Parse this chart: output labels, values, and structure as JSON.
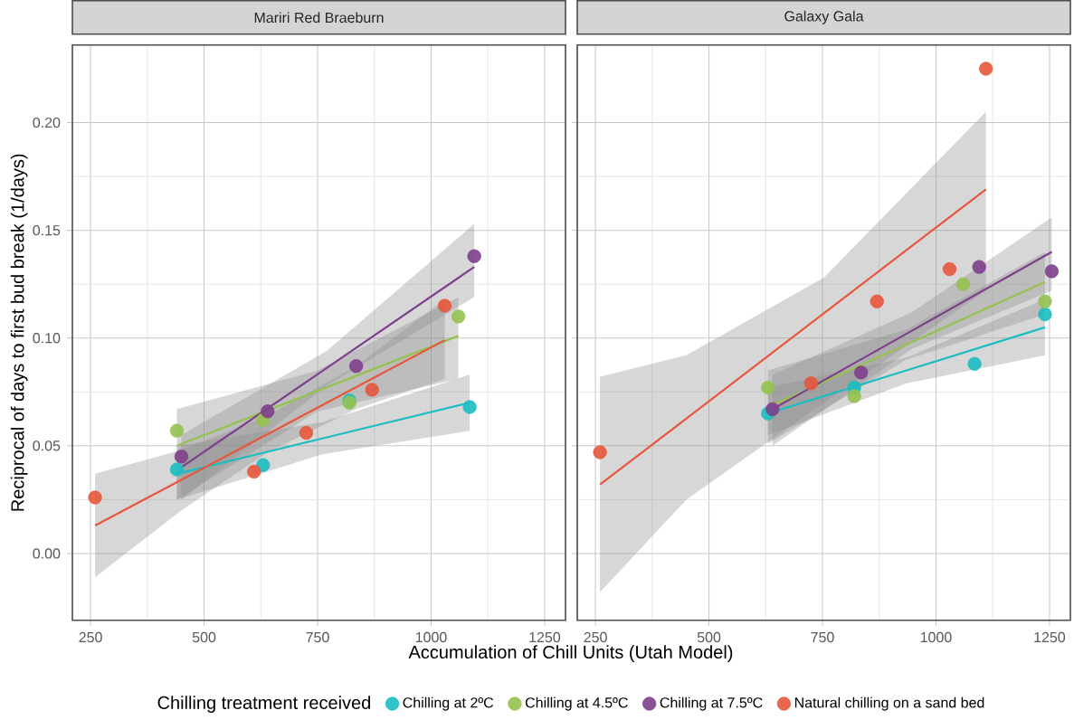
{
  "chart_data": [
    {
      "type": "scatter",
      "marker": "circle",
      "title": "Mariri Red Braeburn",
      "xlabel": "Accumulation of Chill Units (Utah Model)",
      "ylabel": "Reciprocal of days to first bud break (1/days)",
      "legend_title": "Chilling treatment received",
      "legend": "bottom",
      "grid": true,
      "xlim": [
        210,
        1296
      ],
      "ylim": [
        -0.031,
        0.236
      ],
      "xticks": [
        250,
        500,
        750,
        1000,
        1250
      ],
      "yticks": [
        {
          "value": 0,
          "label": "0.00"
        },
        {
          "value": 0.05,
          "label": "0.05"
        },
        {
          "value": 0.1,
          "label": "0.10"
        },
        {
          "value": 0.15,
          "label": "0.15"
        },
        {
          "value": 0.2,
          "label": "0.20"
        }
      ],
      "series": [
        {
          "name": "Chilling at 2ºC",
          "color": "#1cbdc2",
          "x": [
            440,
            630,
            820,
            1085
          ],
          "values": [
            0.039,
            0.041,
            0.071,
            0.068
          ]
        },
        {
          "name": "Chilling at 4.5ºC",
          "color": "#96c250",
          "x": [
            440,
            630,
            820,
            1060
          ],
          "values": [
            0.057,
            0.062,
            0.07,
            0.11
          ]
        },
        {
          "name": "Chilling at 7.5ºC",
          "color": "#7e3f8c",
          "x": [
            450,
            640,
            835,
            1095
          ],
          "values": [
            0.045,
            0.066,
            0.087,
            0.138
          ]
        },
        {
          "name": "Natural chilling on a sand bed",
          "color": "#e8573c",
          "x": [
            260,
            610,
            725,
            870,
            1030
          ],
          "values": [
            0.026,
            0.038,
            0.056,
            0.076,
            0.115
          ]
        },
        {
          "type": "line",
          "marker": "none",
          "color": "#1cbdc2",
          "x": [
            440,
            760,
            1085
          ],
          "values": [
            0.037,
            0.0534,
            0.07
          ],
          "lower": [
            0.025,
            0.046,
            0.057
          ],
          "upper": [
            0.05,
            0.061,
            0.083
          ]
        },
        {
          "type": "line",
          "marker": "none",
          "color": "#96c250",
          "x": [
            440,
            750,
            1060
          ],
          "values": [
            0.05,
            0.0755,
            0.101
          ],
          "lower": [
            0.025,
            0.066,
            0.081
          ],
          "upper": [
            0.067,
            0.085,
            0.119
          ]
        },
        {
          "type": "line",
          "marker": "none",
          "color": "#7e3f8c",
          "x": [
            450,
            770,
            1095
          ],
          "values": [
            0.04,
            0.0861,
            0.133
          ],
          "lower": [
            0.025,
            0.078,
            0.119
          ],
          "upper": [
            0.055,
            0.094,
            0.153
          ]
        },
        {
          "type": "line",
          "marker": "none",
          "color": "#e8573c",
          "x": [
            260,
            450,
            640,
            835,
            1030
          ],
          "values": [
            0.013,
            0.0342,
            0.0554,
            0.0772,
            0.099
          ],
          "lower": [
            -0.011,
            0.02,
            0.047,
            0.067,
            0.081
          ],
          "upper": [
            0.037,
            0.048,
            0.064,
            0.087,
            0.118
          ]
        }
      ]
    },
    {
      "type": "scatter",
      "marker": "circle",
      "title": "Galaxy Gala",
      "grid": true,
      "tick_labels": "x",
      "xlim": [
        210,
        1296
      ],
      "ylim": [
        -0.031,
        0.236
      ],
      "xticks": [
        250,
        500,
        750,
        1000,
        1250
      ],
      "yticks": [
        0,
        0.05,
        0.1,
        0.15,
        0.2
      ],
      "series": [
        {
          "color": "#1cbdc2",
          "x": [
            630,
            820,
            1085,
            1240
          ],
          "values": [
            0.065,
            0.077,
            0.088,
            0.111
          ]
        },
        {
          "color": "#96c250",
          "x": [
            630,
            820,
            1060,
            1240
          ],
          "values": [
            0.077,
            0.073,
            0.125,
            0.117
          ]
        },
        {
          "color": "#7e3f8c",
          "x": [
            640,
            835,
            1095,
            1255
          ],
          "values": [
            0.067,
            0.084,
            0.133,
            0.131
          ]
        },
        {
          "color": "#e8573c",
          "x": [
            260,
            725,
            870,
            1030,
            1110
          ],
          "values": [
            0.047,
            0.079,
            0.117,
            0.132,
            0.225
          ]
        },
        {
          "type": "line",
          "marker": "none",
          "color": "#1cbdc2",
          "x": [
            630,
            935,
            1240
          ],
          "values": [
            0.065,
            0.085,
            0.105
          ],
          "lower": [
            0.055,
            0.079,
            0.092
          ],
          "upper": [
            0.077,
            0.091,
            0.118
          ]
        },
        {
          "type": "line",
          "marker": "none",
          "color": "#96c250",
          "x": [
            630,
            935,
            1240
          ],
          "values": [
            0.068,
            0.097,
            0.126
          ],
          "lower": [
            0.051,
            0.09,
            0.111
          ],
          "upper": [
            0.085,
            0.104,
            0.14
          ]
        },
        {
          "type": "line",
          "marker": "none",
          "color": "#7e3f8c",
          "x": [
            640,
            947,
            1255
          ],
          "values": [
            0.067,
            0.1034,
            0.14
          ],
          "lower": [
            0.05,
            0.095,
            0.122
          ],
          "upper": [
            0.083,
            0.112,
            0.156
          ]
        },
        {
          "type": "line",
          "marker": "none",
          "color": "#e8573c",
          "x": [
            260,
            450,
            753,
            1110
          ],
          "values": [
            0.032,
            0.0626,
            0.1115,
            0.169
          ],
          "lower": [
            -0.018,
            0.025,
            0.07,
            0.122
          ],
          "upper": [
            0.082,
            0.092,
            0.128,
            0.205
          ]
        }
      ]
    }
  ]
}
